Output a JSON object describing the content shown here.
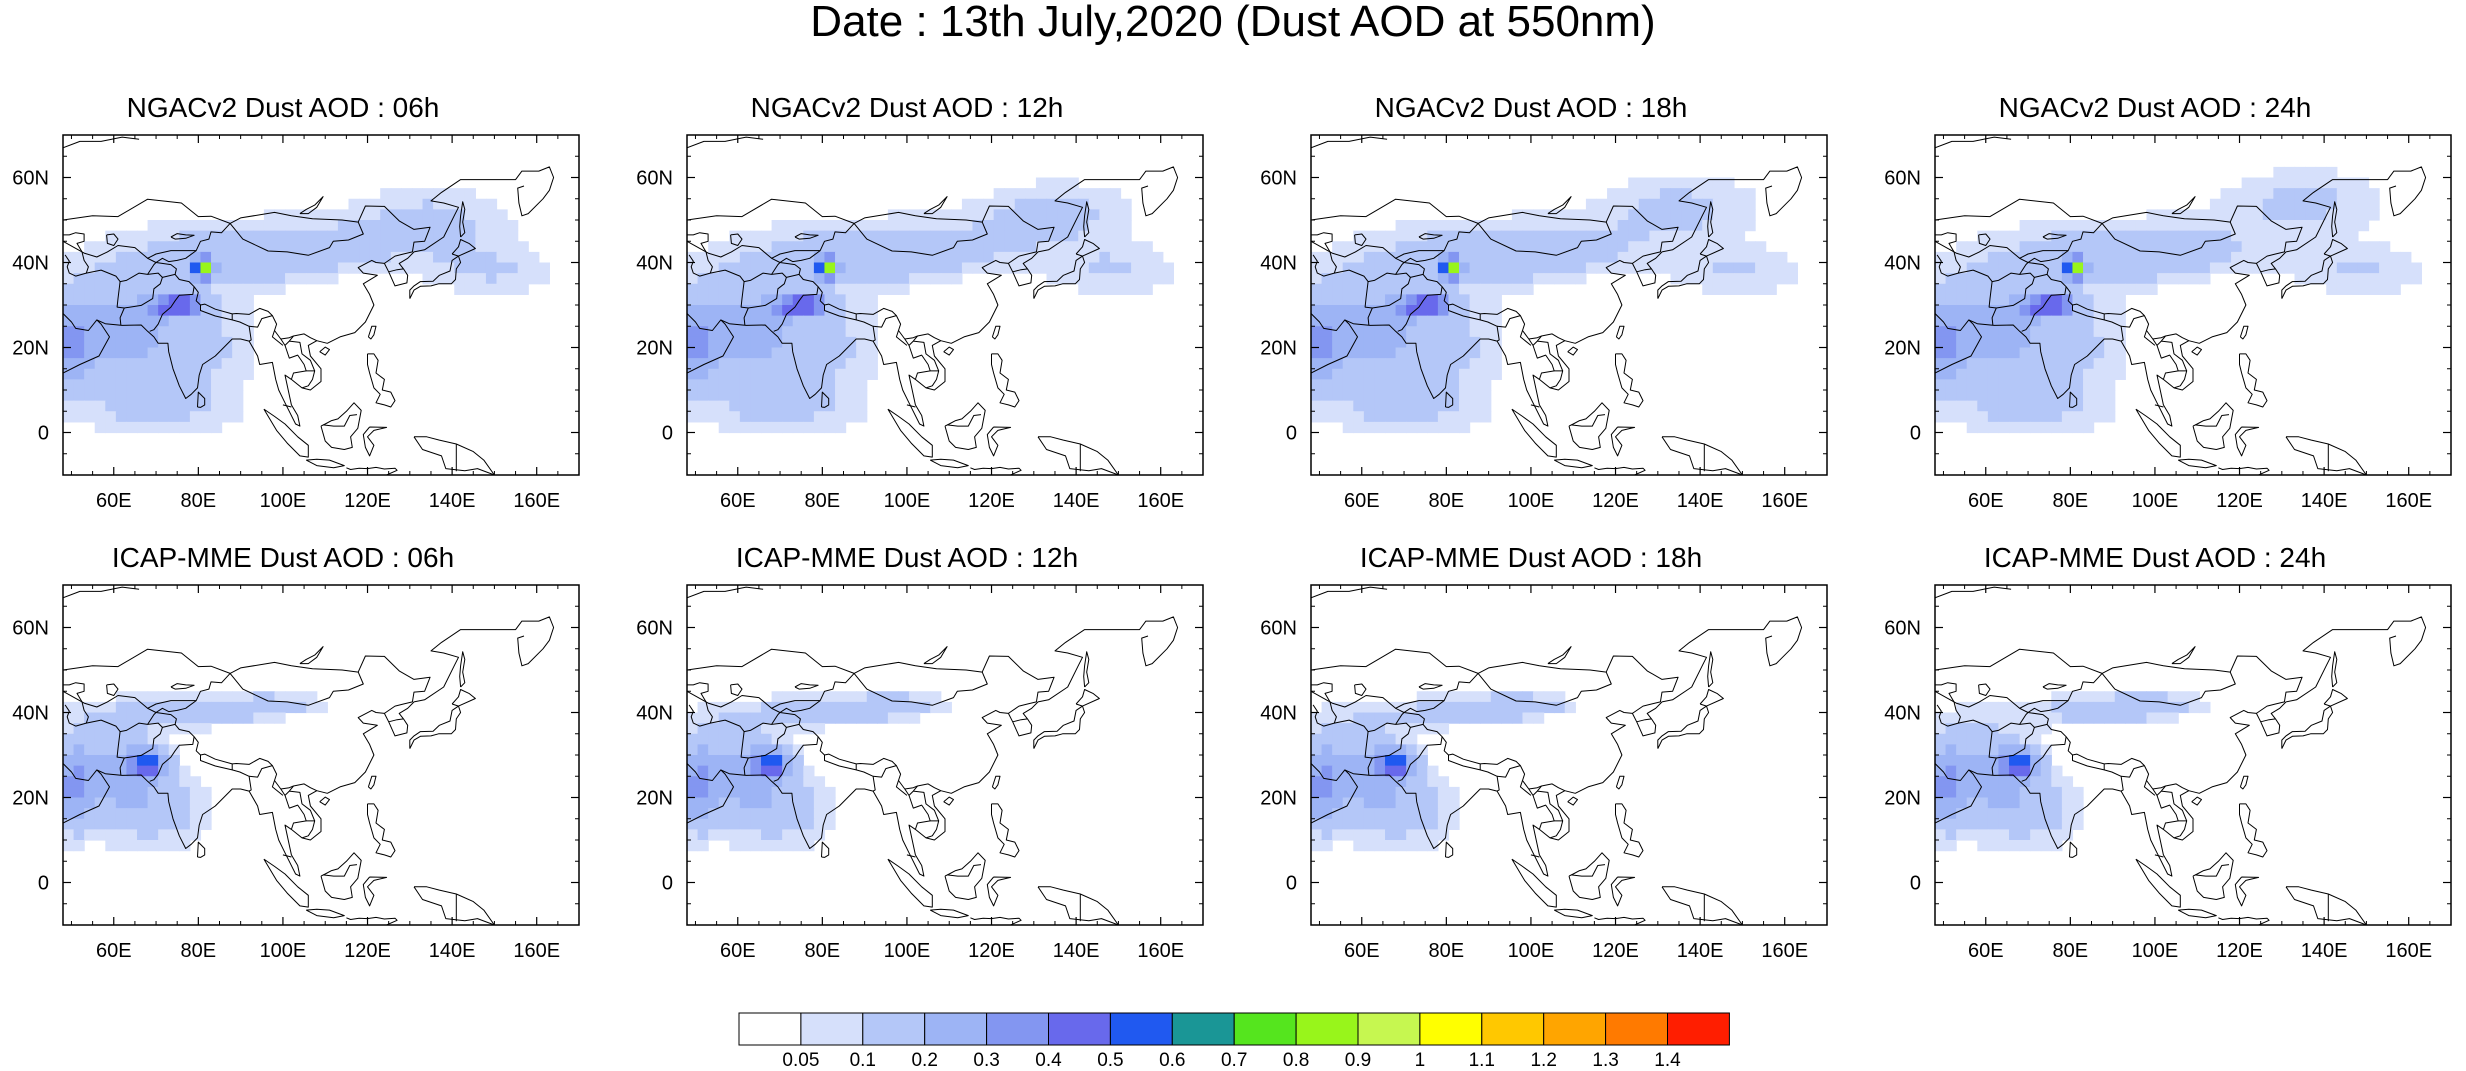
{
  "title": "Date : 13th July,2020 (Dust AOD at 550nm)",
  "colors": {
    "coast": "#000000",
    "levels": [
      "#ffffff",
      "#d6e0fb",
      "#b4c7f8",
      "#9db4f5",
      "#8396f1",
      "#6869ec",
      "#2059f0",
      "#1a9696",
      "#55e51e",
      "#98f51b",
      "#c6f750",
      "#ffff00",
      "#ffc800",
      "#ffa500",
      "#ff7a00",
      "#ff1e00"
    ]
  },
  "colorbar": {
    "labels": [
      "0.05",
      "0.1",
      "0.2",
      "0.3",
      "0.4",
      "0.5",
      "0.6",
      "0.7",
      "0.8",
      "0.9",
      "1",
      "1.1",
      "1.2",
      "1.3",
      "1.4"
    ]
  },
  "axes": {
    "lon_range": [
      48,
      170
    ],
    "lat_range": [
      -10,
      70
    ],
    "lon_ticks": [
      "60E",
      "80E",
      "100E",
      "120E",
      "140E",
      "160E"
    ],
    "lat_ticks": [
      "60N",
      "40N",
      "20N",
      "0"
    ]
  },
  "panels": [
    {
      "id": "ngac-06",
      "title": "NGACv2 Dust AOD : 06h"
    },
    {
      "id": "ngac-12",
      "title": "NGACv2 Dust AOD : 12h"
    },
    {
      "id": "ngac-18",
      "title": "NGACv2 Dust AOD : 18h"
    },
    {
      "id": "ngac-24",
      "title": "NGACv2 Dust AOD : 24h"
    },
    {
      "id": "icap-06",
      "title": "ICAP-MME Dust AOD : 06h"
    },
    {
      "id": "icap-12",
      "title": "ICAP-MME Dust AOD : 12h"
    },
    {
      "id": "icap-18",
      "title": "ICAP-MME Dust AOD : 18h"
    },
    {
      "id": "icap-24",
      "title": "ICAP-MME Dust AOD : 24h"
    }
  ]
}
